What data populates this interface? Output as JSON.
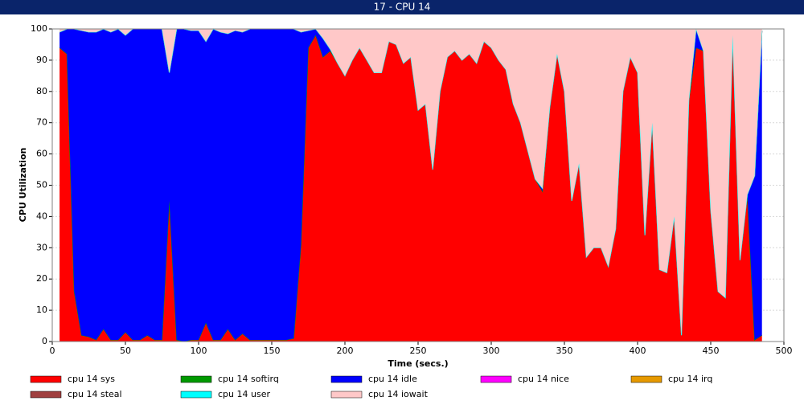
{
  "window_title": "17 - CPU 14",
  "chart_data": {
    "type": "stacked_area",
    "xlabel": "Time (secs.)",
    "ylabel": "CPU Utilization",
    "xlim": [
      0,
      500
    ],
    "xticks": [
      0,
      50,
      100,
      150,
      200,
      250,
      300,
      350,
      400,
      450,
      500
    ],
    "ylim": [
      0,
      100
    ],
    "yticks": [
      0,
      10,
      20,
      30,
      40,
      50,
      60,
      70,
      80,
      90,
      100
    ],
    "grid": true,
    "x": [
      5,
      10,
      15,
      20,
      25,
      30,
      35,
      40,
      45,
      50,
      55,
      60,
      65,
      70,
      75,
      80,
      85,
      90,
      95,
      100,
      105,
      110,
      115,
      120,
      125,
      130,
      135,
      140,
      145,
      150,
      155,
      160,
      165,
      170,
      175,
      180,
      185,
      190,
      195,
      200,
      205,
      210,
      215,
      220,
      225,
      230,
      235,
      240,
      245,
      250,
      255,
      260,
      265,
      270,
      275,
      280,
      285,
      290,
      295,
      300,
      305,
      310,
      315,
      320,
      325,
      330,
      335,
      340,
      345,
      350,
      355,
      360,
      365,
      370,
      375,
      380,
      385,
      390,
      395,
      400,
      405,
      410,
      415,
      420,
      425,
      430,
      435,
      440,
      445,
      450,
      455,
      460,
      465,
      470,
      475,
      480,
      485
    ],
    "series": [
      {
        "name": "cpu 14 sys",
        "color": "#ff0000",
        "values": [
          94,
          92,
          16,
          2,
          1.5,
          0.5,
          4,
          0.5,
          0.5,
          3,
          0.5,
          0.5,
          2,
          0.5,
          0.5,
          45,
          0.5,
          0,
          0.5,
          0.5,
          6,
          0.5,
          0.5,
          4,
          0.5,
          2.5,
          0.5,
          0.5,
          0.5,
          0.5,
          0.5,
          0.5,
          1,
          31,
          94,
          98,
          91,
          93,
          89,
          85,
          90,
          94,
          90,
          86,
          86,
          96,
          95,
          89,
          91,
          74,
          76,
          55,
          80,
          91,
          93,
          90,
          92,
          89,
          96,
          94,
          90,
          87,
          76,
          70,
          61,
          52,
          48,
          75,
          92,
          80,
          45,
          57,
          27,
          30,
          30,
          24,
          36,
          80,
          91,
          86,
          34,
          70,
          23,
          22,
          40,
          2,
          77,
          94,
          93,
          42,
          16,
          14,
          98,
          26,
          47,
          0.5,
          2
        ]
      },
      {
        "name": "cpu 14 softirq",
        "color": "#009900",
        "values": [
          0,
          0,
          0,
          0,
          0,
          0,
          0,
          0,
          0,
          0,
          0,
          0,
          0,
          0,
          0,
          0,
          0,
          0,
          0,
          0,
          0,
          0,
          0,
          0,
          0,
          0,
          0,
          0,
          0,
          0,
          0,
          0,
          0,
          0,
          0,
          0,
          0,
          0,
          0,
          0,
          0,
          0,
          0,
          0,
          0,
          0,
          0,
          0,
          0,
          0,
          0,
          0,
          0,
          0,
          0,
          0,
          0,
          0,
          0,
          0,
          0,
          0,
          0,
          0,
          0,
          0,
          0,
          0,
          0,
          0,
          0,
          0,
          0,
          0,
          0,
          0,
          0,
          0,
          0,
          0,
          0,
          0,
          0,
          0,
          0,
          0,
          0,
          0,
          0,
          0,
          0,
          0,
          0,
          0,
          0,
          0,
          0
        ]
      },
      {
        "name": "cpu 14 idle",
        "color": "#0000ff",
        "values": [
          5,
          8,
          84,
          97.5,
          97.5,
          98.5,
          96,
          98.5,
          99.5,
          95,
          99.5,
          99.5,
          98,
          99.5,
          99.5,
          41,
          99.5,
          100,
          99,
          99,
          90,
          99.5,
          98.5,
          94.5,
          99,
          96.5,
          99.5,
          99.5,
          99.5,
          99.5,
          99.5,
          99.5,
          99,
          68,
          5.5,
          2,
          6,
          0.5,
          0,
          0,
          0,
          0,
          0,
          0,
          0,
          0,
          0,
          0,
          0,
          0,
          0,
          0,
          0,
          0,
          0,
          0,
          0,
          0,
          0,
          0,
          0,
          0,
          0,
          0,
          0,
          0,
          1,
          0,
          0,
          0,
          0,
          0,
          0,
          0,
          0,
          0,
          0,
          0,
          0,
          0,
          0,
          0,
          0,
          0,
          0,
          0,
          0,
          6,
          0,
          0,
          0,
          0,
          0,
          0,
          0,
          52.5,
          97.5
        ]
      },
      {
        "name": "cpu 14 nice",
        "color": "#ff00ff",
        "values": [
          0,
          0,
          0,
          0,
          0,
          0,
          0,
          0,
          0,
          0,
          0,
          0,
          0,
          0,
          0,
          0,
          0,
          0,
          0,
          0,
          0,
          0,
          0,
          0,
          0,
          0,
          0,
          0,
          0,
          0,
          0,
          0,
          0,
          0,
          0,
          0,
          0,
          0,
          0,
          0,
          0,
          0,
          0,
          0,
          0,
          0,
          0,
          0,
          0,
          0,
          0,
          0,
          0,
          0,
          0,
          0,
          0,
          0,
          0,
          0,
          0,
          0,
          0,
          0,
          0,
          0,
          0,
          0,
          0,
          0,
          0,
          0,
          0,
          0,
          0,
          0,
          0,
          0,
          0,
          0,
          0,
          0,
          0,
          0,
          0,
          0,
          0,
          0,
          0,
          0,
          0,
          0,
          0,
          0,
          0,
          0,
          0
        ]
      },
      {
        "name": "cpu 14 irq",
        "color": "#e69900",
        "values": [
          0,
          0,
          0,
          0,
          0,
          0,
          0,
          0,
          0,
          0,
          0,
          0,
          0,
          0,
          0,
          0,
          0,
          0,
          0,
          0,
          0,
          0,
          0,
          0,
          0,
          0,
          0,
          0,
          0,
          0,
          0,
          0,
          0,
          0,
          0,
          0,
          0,
          0,
          0,
          0,
          0,
          0,
          0,
          0,
          0,
          0,
          0,
          0,
          0,
          0,
          0,
          0,
          0,
          0,
          0,
          0,
          0,
          0,
          0,
          0,
          0,
          0,
          0,
          0,
          0,
          0,
          0,
          0,
          0,
          0,
          0,
          0,
          0,
          0,
          0,
          0,
          0,
          0,
          0,
          0,
          0,
          0,
          0,
          0,
          0,
          0,
          0,
          0,
          0,
          0,
          0,
          0,
          0,
          0,
          0,
          0,
          0
        ]
      },
      {
        "name": "cpu 14 steal",
        "color": "#a04040",
        "values": [
          0,
          0,
          0,
          0,
          0,
          0,
          0,
          0,
          0,
          0,
          0,
          0,
          0,
          0,
          0,
          0,
          0,
          0,
          0,
          0,
          0,
          0,
          0,
          0,
          0,
          0,
          0,
          0,
          0,
          0,
          0,
          0,
          0,
          0,
          0,
          0,
          0,
          0,
          0,
          0,
          0,
          0,
          0,
          0,
          0,
          0,
          0,
          0,
          0,
          0,
          0,
          0,
          0,
          0,
          0,
          0,
          0,
          0,
          0,
          0,
          0,
          0,
          0,
          0,
          0,
          0,
          0,
          0,
          0,
          0,
          0,
          0,
          0,
          0,
          0,
          0,
          0,
          0,
          0,
          0,
          0,
          0,
          0,
          0,
          0,
          0,
          0,
          0,
          0,
          0,
          0,
          0,
          0,
          0,
          0,
          0,
          0
        ]
      },
      {
        "name": "cpu 14 user",
        "color": "#00ffff",
        "values": [
          0,
          0,
          0,
          0,
          0,
          0,
          0,
          0,
          0,
          0,
          0,
          0,
          0,
          0,
          0,
          0,
          0,
          0,
          0,
          0,
          0,
          0,
          0,
          0,
          0,
          0,
          0,
          0,
          0,
          0,
          0,
          0,
          0,
          0,
          0,
          0,
          0,
          0,
          0,
          0,
          0,
          0,
          0,
          0,
          0,
          0,
          0,
          0,
          0,
          0,
          0,
          0,
          0,
          0,
          0,
          0,
          0,
          0,
          0,
          0,
          0,
          0,
          0,
          0,
          0,
          0,
          0,
          0,
          0,
          0,
          0,
          0,
          0,
          0,
          0,
          0,
          0,
          0,
          0,
          0,
          0,
          0,
          0,
          0,
          0,
          0,
          0,
          0,
          0,
          0,
          0,
          0,
          0,
          0,
          0,
          0,
          0
        ]
      },
      {
        "name": "cpu 14 iowait",
        "color": "#ffc8c8",
        "values": [
          1,
          0,
          0,
          0.5,
          1,
          1,
          0,
          1,
          0,
          2,
          0,
          0,
          0,
          0,
          0,
          14,
          0,
          0,
          0.5,
          0.5,
          4,
          0,
          1,
          1.5,
          0.5,
          1,
          0,
          0,
          0,
          0,
          0,
          0,
          0,
          1,
          0.5,
          0,
          3,
          6.5,
          11,
          15,
          10,
          6,
          10,
          14,
          14,
          4,
          5,
          11,
          9,
          26,
          24,
          45,
          20,
          9,
          7,
          10,
          8,
          11,
          4,
          6,
          10,
          13,
          24,
          30,
          39,
          48,
          51,
          25,
          8,
          20,
          55,
          43,
          73,
          70,
          70,
          76,
          64,
          20,
          9,
          14,
          66,
          30,
          77,
          78,
          60,
          98,
          23,
          0,
          7,
          58,
          84,
          86,
          2,
          74,
          53,
          47,
          0.5
        ]
      }
    ]
  }
}
